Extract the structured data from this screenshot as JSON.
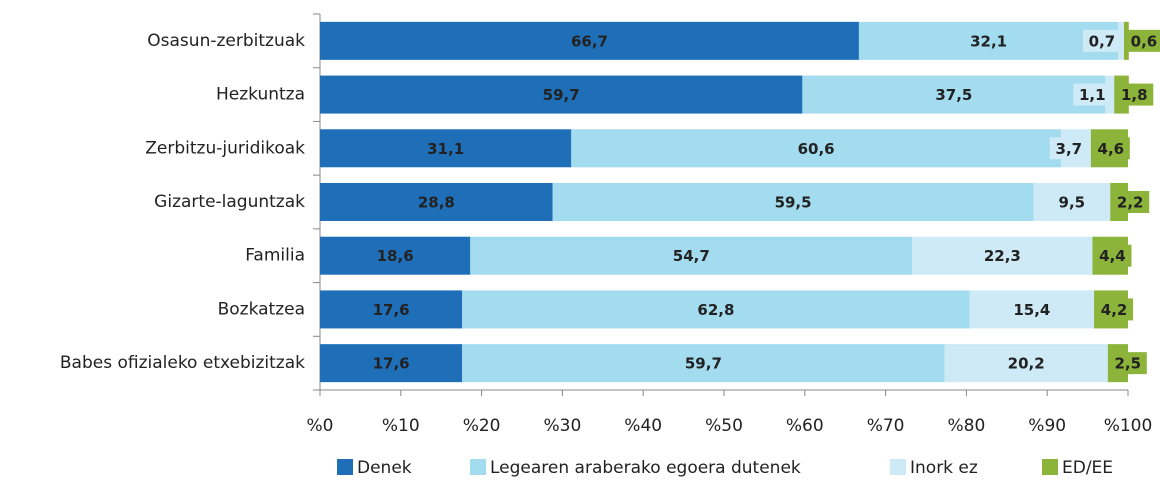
{
  "chart_data": {
    "type": "stacked-bar-horizontal",
    "categories": [
      "Osasun-zerbitzuak",
      "Hezkuntza",
      "Zerbitzu-juridikoak",
      "Gizarte-laguntzak",
      "Familia",
      "Bozkatzea",
      "Babes ofizialeko etxebizitzak"
    ],
    "series": [
      {
        "name": "Denek",
        "color": "#1f6fb8",
        "values": [
          66.7,
          59.7,
          31.1,
          28.8,
          18.6,
          17.6,
          17.6
        ],
        "value_labels": [
          "66,7",
          "59,7",
          "31,1",
          "28,8",
          "18,6",
          "17,6",
          "17,6"
        ]
      },
      {
        "name": "Legearen araberako egoera dutenek",
        "color": "#a3dbef",
        "values": [
          32.1,
          37.5,
          60.6,
          59.5,
          54.7,
          62.8,
          59.7
        ],
        "value_labels": [
          "32,1",
          "37,5",
          "60,6",
          "59,5",
          "54,7",
          "62,8",
          "59,7"
        ]
      },
      {
        "name": "Inork ez",
        "color": "#cdeaf6",
        "values": [
          0.7,
          1.1,
          3.7,
          9.5,
          22.3,
          15.4,
          20.2
        ],
        "value_labels": [
          "0,7",
          "1,1",
          "3,7",
          "9,5",
          "22,3",
          "15,4",
          "20,2"
        ]
      },
      {
        "name": "ED/EE",
        "color": "#8cb33a",
        "values": [
          0.6,
          1.8,
          4.6,
          2.2,
          4.4,
          4.2,
          2.5
        ],
        "value_labels": [
          "0,6",
          "1,8",
          "4,6",
          "2,2",
          "4,4",
          "4,2",
          "2,5"
        ]
      }
    ],
    "xlim": [
      0,
      100
    ],
    "xticks": [
      {
        "value": 0,
        "label": "%0"
      },
      {
        "value": 10,
        "label": "%10"
      },
      {
        "value": 20,
        "label": "%20"
      },
      {
        "value": 30,
        "label": "%30"
      },
      {
        "value": 40,
        "label": "%40"
      },
      {
        "value": 50,
        "label": "%50"
      },
      {
        "value": 60,
        "label": "%60"
      },
      {
        "value": 70,
        "label": "%70"
      },
      {
        "value": 80,
        "label": "%80"
      },
      {
        "value": 90,
        "label": "%90"
      },
      {
        "value": 100,
        "label": "%100"
      }
    ],
    "legend": "bottom"
  }
}
